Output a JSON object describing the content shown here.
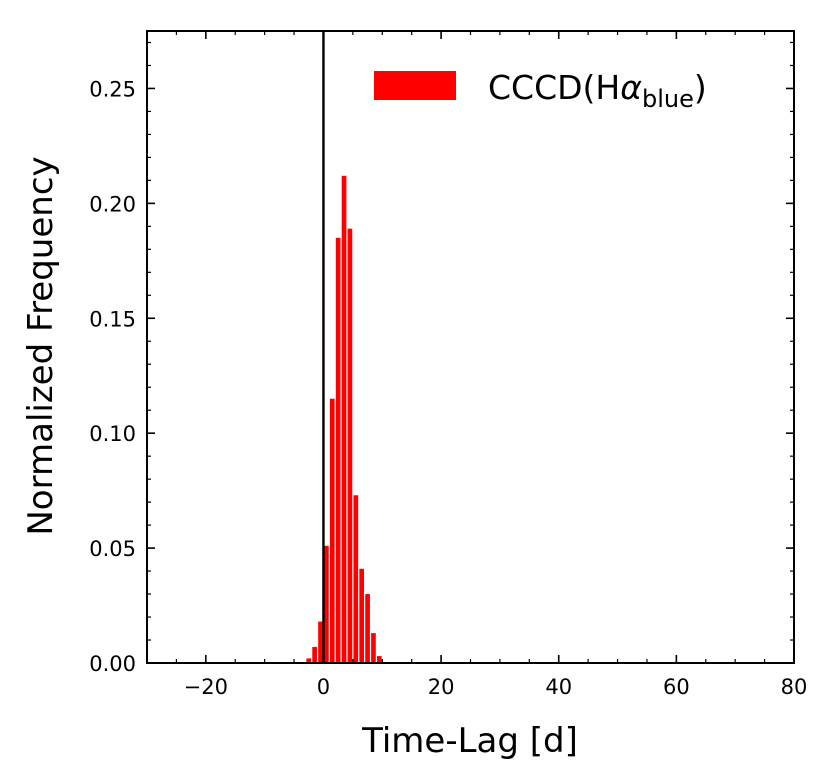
{
  "chart_data": {
    "type": "bar",
    "xlabel": "Time-Lag [d]",
    "ylabel": "Normalized Frequency",
    "xlim": [
      -30,
      80
    ],
    "ylim": [
      0,
      0.275
    ],
    "xticks": [
      -20,
      0,
      20,
      40,
      60,
      80
    ],
    "xtick_labels": [
      "−20",
      "0",
      "20",
      "40",
      "60",
      "80"
    ],
    "yticks": [
      0.0,
      0.05,
      0.1,
      0.15,
      0.2,
      0.25
    ],
    "ytick_labels": [
      "0.00",
      "0.05",
      "0.10",
      "0.15",
      "0.20",
      "0.25"
    ],
    "grid": false,
    "legend_position": "top-right",
    "color": "#ff0000",
    "vertical_line_x": 0,
    "bin_width": 1.0,
    "series": [
      {
        "name": "CCCD(Hα_blue)",
        "legend_main": "CCCD(H",
        "legend_alpha": "α",
        "legend_sub": "blue",
        "legend_close": ")",
        "bin_left": [
          -3,
          -2,
          -1,
          0,
          1,
          2,
          3,
          4,
          5,
          6,
          7,
          8,
          9
        ],
        "values": [
          0.002,
          0.007,
          0.018,
          0.051,
          0.115,
          0.185,
          0.212,
          0.189,
          0.073,
          0.041,
          0.03,
          0.013,
          0.003
        ]
      }
    ]
  }
}
